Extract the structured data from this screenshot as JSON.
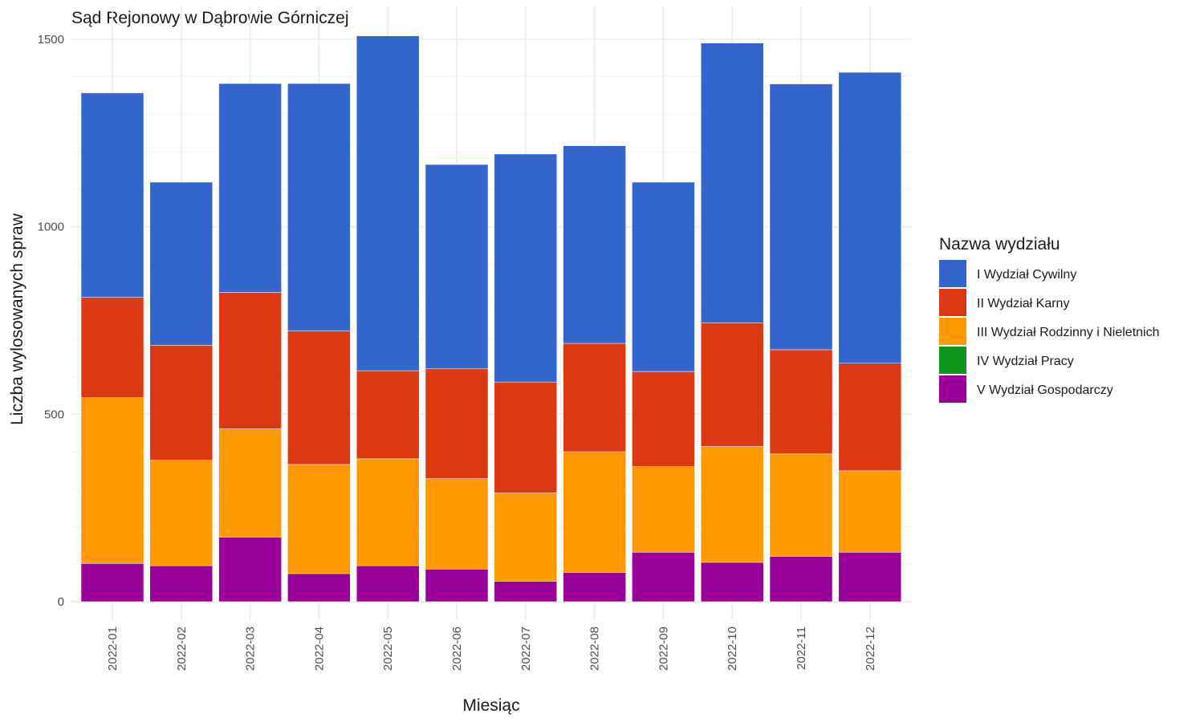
{
  "chart_data": {
    "type": "bar",
    "stacked": true,
    "title": "Sąd Rejonowy w Dąbrowie Górniczej",
    "xlabel": "Miesiąc",
    "ylabel": "Liczba wylosowanych spraw",
    "ylim": [
      0,
      1500
    ],
    "yticks": [
      0,
      500,
      1000,
      1500
    ],
    "grid": true,
    "legend_title": "Nazwa wydziału",
    "legend_position": "right",
    "categories": [
      "2022-01",
      "2022-02",
      "2022-03",
      "2022-04",
      "2022-05",
      "2022-06",
      "2022-07",
      "2022-08",
      "2022-09",
      "2022-10",
      "2022-11",
      "2022-12"
    ],
    "series": [
      {
        "name": "I Wydział Cywilny",
        "color": "#3366CC",
        "values": [
          545,
          435,
          557,
          660,
          893,
          545,
          608,
          527,
          505,
          746,
          709,
          776
        ]
      },
      {
        "name": "II Wydział Karny",
        "color": "#DC3912",
        "values": [
          268,
          307,
          364,
          356,
          235,
          293,
          296,
          289,
          254,
          330,
          278,
          287
        ]
      },
      {
        "name": "III Wydział Rodzinny i Nieletnich",
        "color": "#FF9900",
        "values": [
          442,
          281,
          289,
          291,
          285,
          241,
          236,
          322,
          228,
          309,
          273,
          217
        ]
      },
      {
        "name": "IV Wydział Pracy",
        "color": "#109618",
        "values": [
          0,
          0,
          0,
          0,
          0,
          0,
          0,
          0,
          0,
          0,
          0,
          0
        ]
      },
      {
        "name": "V Wydział Gospodarczy",
        "color": "#990099",
        "values": [
          102,
          96,
          172,
          75,
          96,
          87,
          54,
          78,
          132,
          105,
          121,
          132
        ]
      }
    ]
  }
}
